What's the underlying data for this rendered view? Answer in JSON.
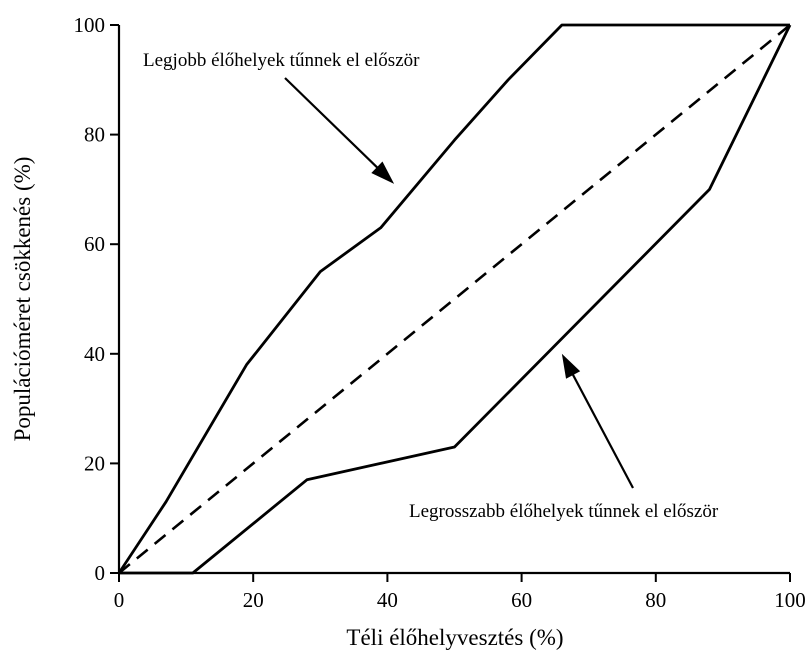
{
  "chart_data": {
    "type": "line",
    "xlabel": "Téli élőhelyvesztés (%)",
    "ylabel": "Populációméret csökkenés (%)",
    "xlim": [
      0,
      100
    ],
    "ylim": [
      0,
      100
    ],
    "x_ticks": [
      "0",
      "20",
      "40",
      "60",
      "80",
      "100"
    ],
    "y_ticks": [
      "0",
      "20",
      "40",
      "60",
      "80",
      "100"
    ],
    "grid": false,
    "series": [
      {
        "style": "solid",
        "x": [
          0,
          7,
          19,
          30,
          39,
          50,
          58,
          66,
          100
        ],
        "y": [
          0,
          13,
          38,
          55,
          63,
          79,
          90,
          100,
          100
        ]
      },
      {
        "style": "dashed",
        "x": [
          0,
          100
        ],
        "y": [
          0,
          100
        ]
      },
      {
        "style": "solid",
        "x": [
          0,
          11,
          28,
          50,
          88,
          100
        ],
        "y": [
          0,
          0,
          17,
          23,
          70,
          100
        ]
      }
    ],
    "annotations": [
      {
        "text": "Legjobb élőhelyek tűnnek el először",
        "arrow_target": [
          41,
          71
        ]
      },
      {
        "text": "Legrosszabb élőhelyek tűnnek el először",
        "arrow_target": [
          66,
          40
        ]
      }
    ]
  }
}
